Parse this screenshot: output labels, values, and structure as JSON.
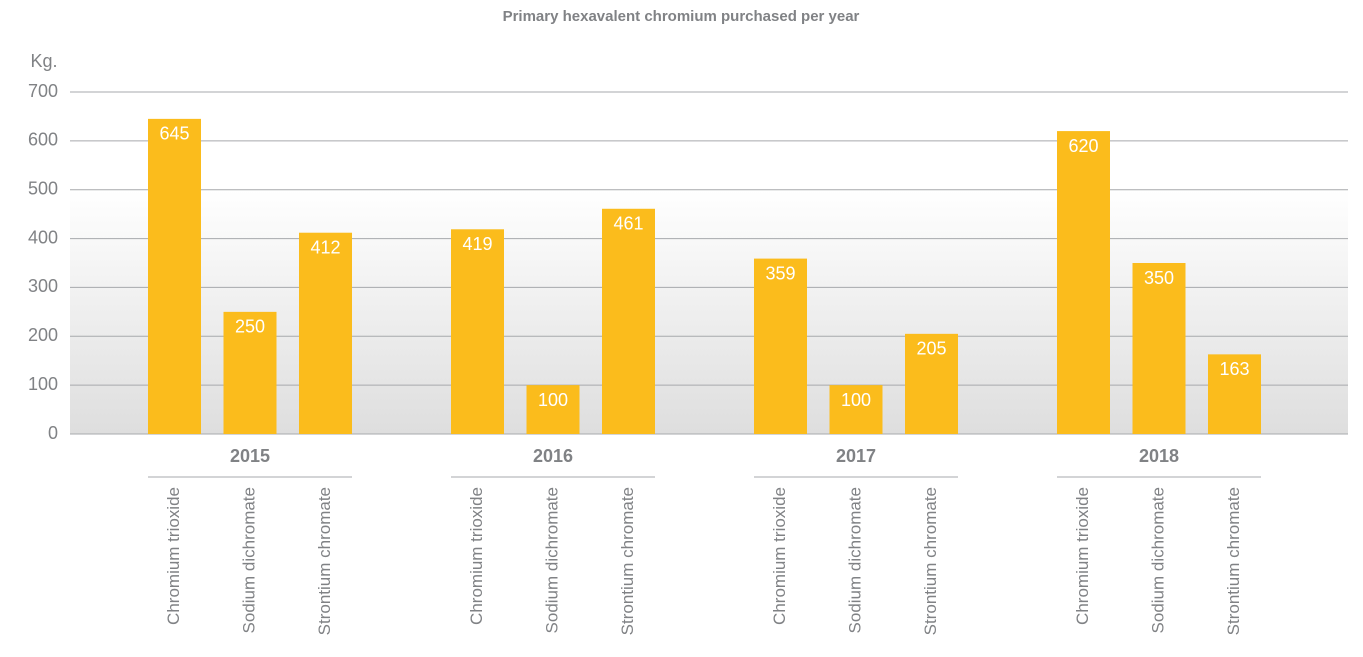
{
  "chart_data": {
    "type": "bar",
    "title": "Primary hexavalent chromium purchased per year",
    "y_label": "Kg.",
    "categories": [
      "2015",
      "2016",
      "2017",
      "2018"
    ],
    "series": [
      {
        "name": "Chromium trioxide",
        "color": "#fbbc1c",
        "values": [
          645,
          419,
          359,
          620
        ]
      },
      {
        "name": "Sodium dichromate",
        "color": "#fbbc1c",
        "values": [
          250,
          100,
          100,
          350
        ]
      },
      {
        "name": "Strontium chromate",
        "color": "#fbbc1c",
        "values": [
          412,
          461,
          205,
          163
        ]
      }
    ],
    "ylim": [
      0,
      700
    ],
    "yticks": [
      0,
      100,
      200,
      300,
      400,
      500,
      600,
      700
    ],
    "grid": true
  }
}
